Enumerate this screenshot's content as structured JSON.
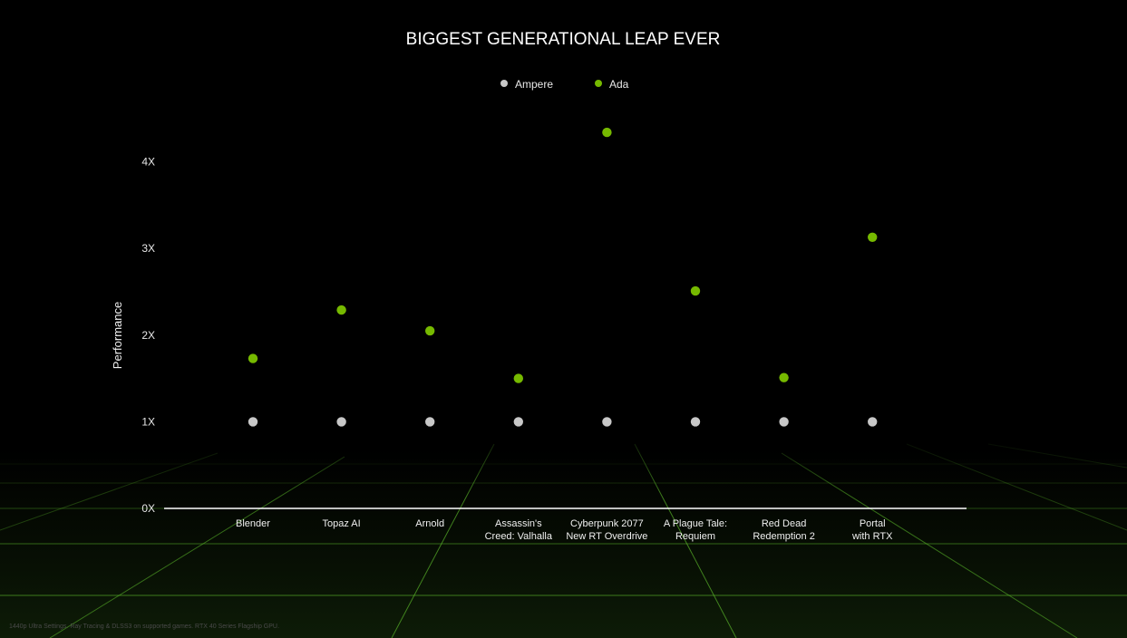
{
  "chart_data": {
    "type": "scatter",
    "title": "BIGGEST GENERATIONAL LEAP EVER",
    "ylabel": "Performance",
    "xlabel": "",
    "ylim": [
      0,
      4.5
    ],
    "yticks": [
      {
        "value": 0,
        "label": "0X"
      },
      {
        "value": 1,
        "label": "1X"
      },
      {
        "value": 2,
        "label": "2X"
      },
      {
        "value": 3,
        "label": "3X"
      },
      {
        "value": 4,
        "label": "4X"
      }
    ],
    "categories": [
      [
        "Blender"
      ],
      [
        "Topaz AI"
      ],
      [
        "Arnold"
      ],
      [
        "Assassin's",
        "Creed: Valhalla"
      ],
      [
        "Cyberpunk 2077",
        "New RT Overdrive"
      ],
      [
        "A Plague Tale:",
        "Requiem"
      ],
      [
        "Red Dead",
        "Redemption 2"
      ],
      [
        "Portal",
        "with RTX"
      ]
    ],
    "series": [
      {
        "name": "Ampere",
        "color": "#c8c8c8",
        "values": [
          1,
          1,
          1,
          1,
          1,
          1,
          1,
          1
        ]
      },
      {
        "name": "Ada",
        "color": "#76b900",
        "values": [
          1.73,
          2.29,
          2.05,
          1.5,
          4.34,
          2.51,
          1.51,
          3.13
        ]
      }
    ],
    "legend_position": "top-center",
    "grid": false
  },
  "footnote": "1440p Ultra Settings. Ray Tracing & DLSS3 on supported games. RTX 40 Series Flagship GPU.",
  "colors": {
    "background": "#000000",
    "floor_grid": "#6fd13a",
    "baseline": "#ffffff"
  }
}
